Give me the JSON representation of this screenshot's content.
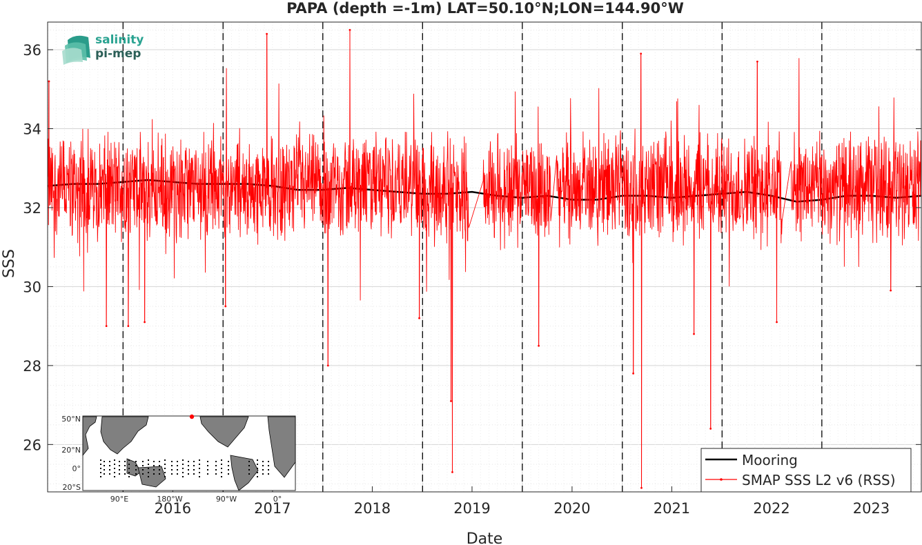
{
  "chart_data": {
    "type": "line",
    "title": "PAPA (depth =-1m) LAT=50.10°N;LON=144.90°W",
    "xlabel": "Date",
    "ylabel": "SSS",
    "xlim": [
      "2015-03-31",
      "2023-12-31"
    ],
    "ylim": [
      24.8,
      36.7
    ],
    "x_ticks": [
      "2016",
      "2017",
      "2018",
      "2019",
      "2020",
      "2021",
      "2022",
      "2023"
    ],
    "y_ticks": [
      "26",
      "28",
      "30",
      "32",
      "34",
      "36"
    ],
    "year_boundaries": [
      "2016-01-01",
      "2017-01-01",
      "2018-01-01",
      "2019-01-01",
      "2020-01-01",
      "2021-01-01",
      "2022-01-01",
      "2023-01-01"
    ],
    "grid": true,
    "legend_position": "bottom-right",
    "series": [
      {
        "name": "Mooring",
        "color": "#000000",
        "x": [
          "2015-04-01",
          "2015-07-01",
          "2015-10-01",
          "2016-01-01",
          "2016-04-01",
          "2016-07-01",
          "2016-10-01",
          "2017-01-01",
          "2017-04-01",
          "2017-07-01",
          "2017-10-01",
          "2018-01-01",
          "2018-04-01",
          "2018-07-01",
          "2018-10-01",
          "2019-01-01",
          "2019-04-01",
          "2019-07-01",
          "2019-10-01",
          "2020-01-01",
          "2020-04-01",
          "2020-07-01",
          "2020-10-01",
          "2021-01-01",
          "2021-04-01",
          "2021-07-01",
          "2021-10-01",
          "2022-01-01",
          "2022-04-01",
          "2022-07-01",
          "2022-10-01",
          "2023-01-01",
          "2023-04-01",
          "2023-07-01",
          "2023-10-01",
          "2023-12-31"
        ],
        "values": [
          32.55,
          32.6,
          32.6,
          32.65,
          32.7,
          32.65,
          32.6,
          32.6,
          32.6,
          32.55,
          32.45,
          32.45,
          32.5,
          32.45,
          32.4,
          32.35,
          32.35,
          32.4,
          32.3,
          32.25,
          32.3,
          32.2,
          32.2,
          32.3,
          32.3,
          32.25,
          32.3,
          32.35,
          32.4,
          32.3,
          32.15,
          32.2,
          32.3,
          32.3,
          32.25,
          32.3
        ]
      },
      {
        "name": "SMAP SSS L2 v6 (RSS)",
        "color": "#ff0000",
        "baseline_mean": 32.5,
        "typical_spread": 1.1,
        "gaps": [
          [
            "2019-06-20",
            "2019-08-10"
          ],
          [
            "2020-04-15",
            "2020-05-05"
          ],
          [
            "2022-08-10",
            "2022-09-10"
          ]
        ],
        "spikes": [
          {
            "x": "2015-04-05",
            "y": 35.2
          },
          {
            "x": "2015-11-01",
            "y": 29.0
          },
          {
            "x": "2016-01-20",
            "y": 29.0
          },
          {
            "x": "2016-03-20",
            "y": 29.1
          },
          {
            "x": "2017-06-10",
            "y": 36.4
          },
          {
            "x": "2017-01-10",
            "y": 29.5
          },
          {
            "x": "2018-04-10",
            "y": 36.5
          },
          {
            "x": "2018-01-20",
            "y": 28.0
          },
          {
            "x": "2019-04-20",
            "y": 25.3
          },
          {
            "x": "2019-04-15",
            "y": 27.1
          },
          {
            "x": "2018-12-20",
            "y": 29.2
          },
          {
            "x": "2020-03-01",
            "y": 28.5
          },
          {
            "x": "2021-03-10",
            "y": 35.9
          },
          {
            "x": "2021-03-12",
            "y": 24.9
          },
          {
            "x": "2021-02-10",
            "y": 27.8
          },
          {
            "x": "2021-09-20",
            "y": 28.8
          },
          {
            "x": "2021-11-20",
            "y": 26.4
          },
          {
            "x": "2022-05-10",
            "y": 35.7
          },
          {
            "x": "2022-07-20",
            "y": 29.1
          },
          {
            "x": "2023-09-10",
            "y": 29.9
          }
        ]
      }
    ],
    "inset_map": {
      "lat_labels": [
        "50°N",
        "20°N",
        "0°",
        "20°S"
      ],
      "lon_labels": [
        "90°E",
        "180°W",
        "90°W",
        "0°"
      ],
      "marker_color": "#ff0000",
      "land_color": "#808080"
    }
  },
  "logo": {
    "line1": "salinity",
    "line2": "pi-mep"
  }
}
